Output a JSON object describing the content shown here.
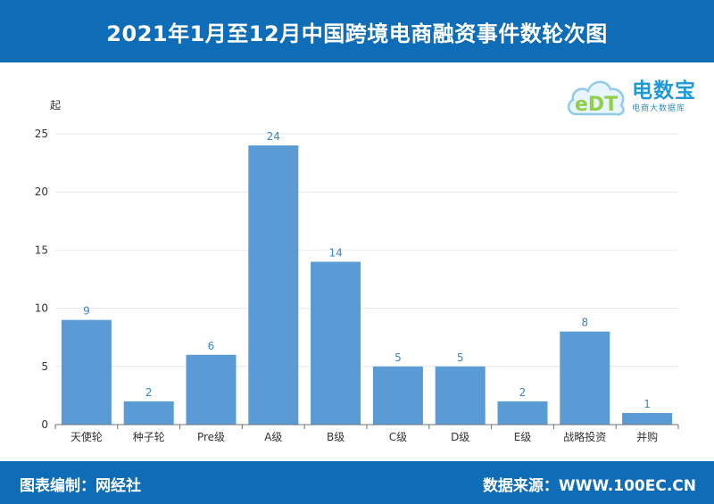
{
  "header": {
    "title": "2021年1月至12月中国跨境电商融资事件数轮次图"
  },
  "footer": {
    "left": "图表编制：网经社",
    "right": "数据来源：WWW.100EC.CN"
  },
  "logo": {
    "mark_text": "eDT",
    "brand": "电数宝",
    "sub": "电商大数据库"
  },
  "chart_data": {
    "type": "bar",
    "title": "2021年1月至12月中国跨境电商融资事件数轮次图",
    "xlabel": "",
    "ylabel": "起",
    "categories": [
      "天使轮",
      "种子轮",
      "Pre级",
      "A级",
      "B级",
      "C级",
      "D级",
      "E级",
      "战略投资",
      "并购"
    ],
    "values": [
      9,
      2,
      6,
      24,
      14,
      5,
      5,
      2,
      8,
      1
    ],
    "ylim": [
      0,
      25
    ],
    "yticks": [
      0,
      5,
      10,
      15,
      20,
      25
    ],
    "grid": true,
    "data_labels": true,
    "colors": {
      "bar": "#5b9bd5",
      "label": "#3a86c8",
      "header": "#0f6cb6"
    }
  }
}
